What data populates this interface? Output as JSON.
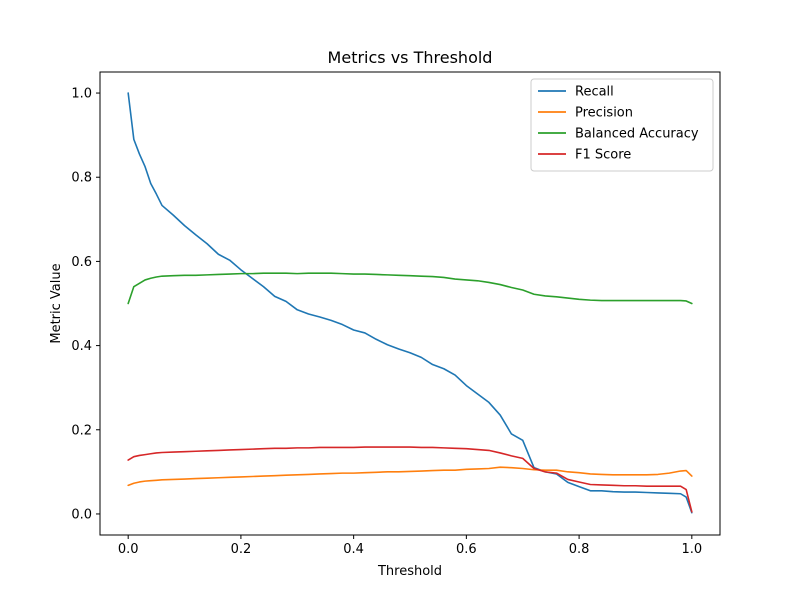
{
  "chart_data": {
    "type": "line",
    "title": "Metrics vs Threshold",
    "xlabel": "Threshold",
    "ylabel": "Metric Value",
    "xlim": [
      -0.05,
      1.05
    ],
    "ylim": [
      -0.05,
      1.05
    ],
    "xticks": [
      0.0,
      0.2,
      0.4,
      0.6,
      0.8,
      1.0
    ],
    "xtick_labels": [
      "0.0",
      "0.2",
      "0.4",
      "0.6",
      "0.8",
      "1.0"
    ],
    "yticks": [
      0.0,
      0.2,
      0.4,
      0.6,
      0.8,
      1.0
    ],
    "ytick_labels": [
      "0.0",
      "0.2",
      "0.4",
      "0.6",
      "0.8",
      "1.0"
    ],
    "grid": false,
    "legend_position": "top-right",
    "x": [
      0.0,
      0.01,
      0.02,
      0.03,
      0.04,
      0.05,
      0.06,
      0.08,
      0.1,
      0.12,
      0.14,
      0.16,
      0.18,
      0.2,
      0.22,
      0.24,
      0.26,
      0.28,
      0.3,
      0.32,
      0.34,
      0.36,
      0.38,
      0.4,
      0.42,
      0.44,
      0.46,
      0.48,
      0.5,
      0.52,
      0.54,
      0.56,
      0.58,
      0.6,
      0.62,
      0.64,
      0.66,
      0.68,
      0.7,
      0.72,
      0.74,
      0.76,
      0.78,
      0.8,
      0.82,
      0.84,
      0.86,
      0.88,
      0.9,
      0.92,
      0.94,
      0.96,
      0.98,
      0.99,
      1.0
    ],
    "series": [
      {
        "name": "Recall",
        "color": "#1f77b4",
        "values": [
          1.0,
          0.89,
          0.855,
          0.825,
          0.785,
          0.76,
          0.733,
          0.71,
          0.685,
          0.663,
          0.642,
          0.617,
          0.603,
          0.58,
          0.56,
          0.54,
          0.517,
          0.505,
          0.485,
          0.475,
          0.468,
          0.46,
          0.45,
          0.437,
          0.43,
          0.415,
          0.402,
          0.392,
          0.383,
          0.372,
          0.355,
          0.345,
          0.33,
          0.305,
          0.285,
          0.265,
          0.235,
          0.19,
          0.175,
          0.11,
          0.1,
          0.095,
          0.075,
          0.065,
          0.055,
          0.055,
          0.053,
          0.052,
          0.052,
          0.051,
          0.05,
          0.049,
          0.048,
          0.04,
          0.003
        ]
      },
      {
        "name": "Precision",
        "color": "#ff7f0e",
        "values": [
          0.068,
          0.073,
          0.076,
          0.078,
          0.079,
          0.08,
          0.081,
          0.082,
          0.083,
          0.084,
          0.085,
          0.086,
          0.087,
          0.088,
          0.089,
          0.09,
          0.091,
          0.092,
          0.093,
          0.094,
          0.095,
          0.096,
          0.097,
          0.097,
          0.098,
          0.099,
          0.1,
          0.1,
          0.101,
          0.102,
          0.103,
          0.104,
          0.104,
          0.106,
          0.107,
          0.108,
          0.111,
          0.11,
          0.108,
          0.105,
          0.104,
          0.104,
          0.1,
          0.098,
          0.095,
          0.094,
          0.093,
          0.093,
          0.093,
          0.093,
          0.094,
          0.097,
          0.102,
          0.103,
          0.09
        ]
      },
      {
        "name": "Balanced Accuracy",
        "color": "#2ca02c",
        "values": [
          0.5,
          0.54,
          0.548,
          0.556,
          0.56,
          0.563,
          0.565,
          0.566,
          0.567,
          0.567,
          0.568,
          0.569,
          0.57,
          0.571,
          0.571,
          0.572,
          0.572,
          0.572,
          0.571,
          0.572,
          0.572,
          0.572,
          0.571,
          0.57,
          0.57,
          0.569,
          0.568,
          0.567,
          0.566,
          0.565,
          0.564,
          0.562,
          0.558,
          0.556,
          0.554,
          0.55,
          0.545,
          0.538,
          0.532,
          0.522,
          0.518,
          0.516,
          0.513,
          0.51,
          0.508,
          0.507,
          0.507,
          0.507,
          0.507,
          0.507,
          0.507,
          0.507,
          0.507,
          0.506,
          0.5
        ]
      },
      {
        "name": "F1 Score",
        "color": "#d62728",
        "values": [
          0.128,
          0.136,
          0.139,
          0.141,
          0.143,
          0.145,
          0.146,
          0.147,
          0.148,
          0.149,
          0.15,
          0.151,
          0.152,
          0.153,
          0.154,
          0.155,
          0.156,
          0.156,
          0.157,
          0.157,
          0.158,
          0.158,
          0.158,
          0.158,
          0.159,
          0.159,
          0.159,
          0.159,
          0.159,
          0.158,
          0.158,
          0.157,
          0.156,
          0.155,
          0.153,
          0.151,
          0.145,
          0.138,
          0.132,
          0.108,
          0.1,
          0.097,
          0.082,
          0.076,
          0.07,
          0.069,
          0.068,
          0.067,
          0.067,
          0.066,
          0.066,
          0.066,
          0.066,
          0.058,
          0.005
        ]
      }
    ]
  }
}
